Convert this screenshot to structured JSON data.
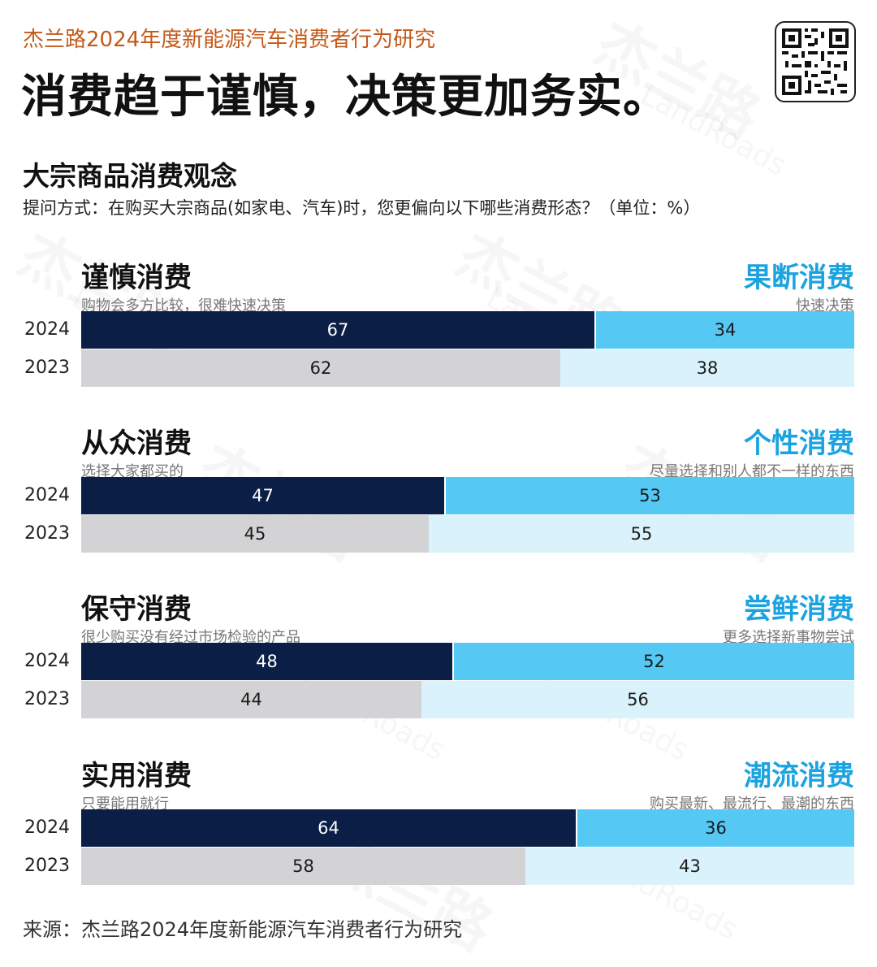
{
  "header": {
    "series_title": "杰兰路2024年度新能源汽车消费者行为研究",
    "headline": "消费趋于谨慎，决策更加务实。",
    "qr_icon": "qr-code-icon"
  },
  "watermark": {
    "cn": "杰兰路",
    "en": "LandRoads"
  },
  "section": {
    "title": "大宗商品消费观念",
    "question": "提问方式：在购买大宗商品(如家电、汽车)时，您更偏向以下哪些消费形态？（单位：%）"
  },
  "colors": {
    "left_2024": "#0b1e45",
    "right_2024": "#55c8f4",
    "left_2023": "#d3d3d5",
    "right_2023": "#daf2fb",
    "right_label": "#1aa3e0",
    "series_title": "#c35a1a"
  },
  "chart_data": {
    "type": "bar",
    "orientation": "horizontal-stacked-diverging",
    "unit": "%",
    "years": [
      "2024",
      "2023"
    ],
    "groups": [
      {
        "left_label": "谨慎消费",
        "left_desc": "购物会多方比较，很难快速决策",
        "right_label": "果断消费",
        "right_desc": "快速决策",
        "rows": [
          {
            "year": "2024",
            "left": 67,
            "right": 34
          },
          {
            "year": "2023",
            "left": 62,
            "right": 38
          }
        ]
      },
      {
        "left_label": "从众消费",
        "left_desc": "选择大家都买的",
        "right_label": "个性消费",
        "right_desc": "尽量选择和别人都不一样的东西",
        "rows": [
          {
            "year": "2024",
            "left": 47,
            "right": 53
          },
          {
            "year": "2023",
            "left": 45,
            "right": 55
          }
        ]
      },
      {
        "left_label": "保守消费",
        "left_desc": "很少购买没有经过市场检验的产品",
        "right_label": "尝鲜消费",
        "right_desc": "更多选择新事物尝试",
        "rows": [
          {
            "year": "2024",
            "left": 48,
            "right": 52
          },
          {
            "year": "2023",
            "left": 44,
            "right": 56
          }
        ]
      },
      {
        "left_label": "实用消费",
        "left_desc": "只要能用就行",
        "right_label": "潮流消费",
        "right_desc": "购买最新、最流行、最潮的东西",
        "rows": [
          {
            "year": "2024",
            "left": 64,
            "right": 36
          },
          {
            "year": "2023",
            "left": 58,
            "right": 43
          }
        ]
      }
    ]
  },
  "footer": {
    "source": "来源：杰兰路2024年度新能源汽车消费者行为研究"
  }
}
